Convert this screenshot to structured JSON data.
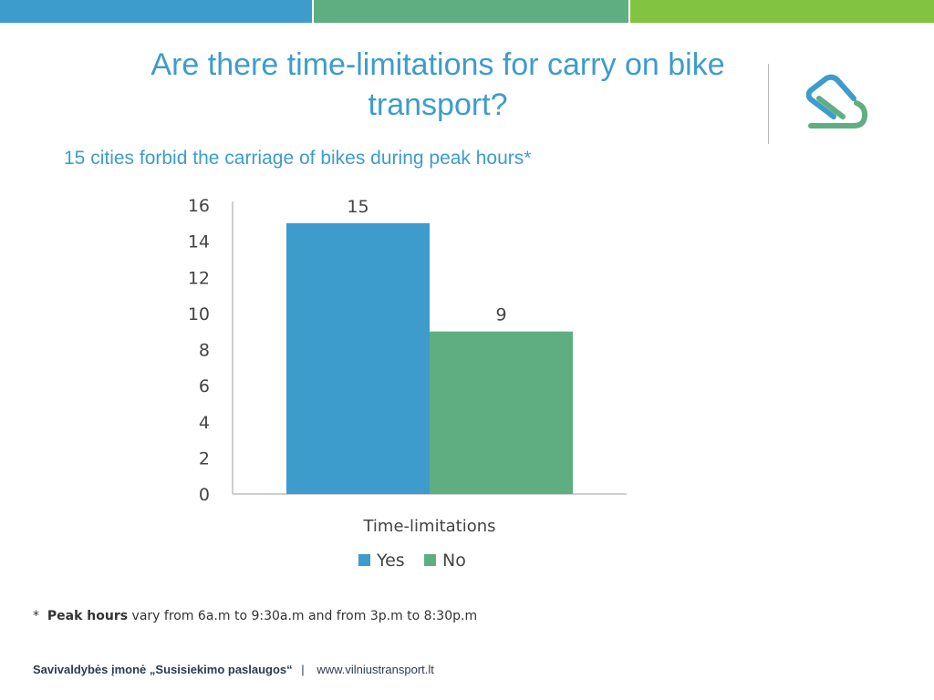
{
  "slide": {
    "title": "Are there time-limitations for carry on bike transport?",
    "subtitle": "15 cities forbid the carriage of bikes during peak hours*",
    "footnote": {
      "marker": "*",
      "bold": "Peak hours",
      "text": "vary from 6a.m to 9:30a.m and from 3p.m to 8:30p.m"
    },
    "footer": {
      "organization": "Savivaldybės įmonė „Susisiekimo paslaugos“",
      "separator": "|",
      "website": "www.vilniustransport.lt"
    }
  },
  "colors": {
    "blue": "#3d9ccc",
    "green": "#5fae82",
    "lime": "#82c341"
  },
  "chart_data": {
    "type": "bar",
    "categories": [
      "Time-limitations"
    ],
    "series": [
      {
        "name": "Yes",
        "values": [
          15
        ],
        "color": "#3d9ccc"
      },
      {
        "name": "No",
        "values": [
          9
        ],
        "color": "#5fae82"
      }
    ],
    "xlabel": "Time-limitations",
    "ylabel": "",
    "ylim": [
      0,
      16
    ],
    "yticks": [
      0,
      2,
      4,
      6,
      8,
      10,
      12,
      14,
      16
    ],
    "data_labels": true,
    "grid": false,
    "legend": "bottom"
  }
}
